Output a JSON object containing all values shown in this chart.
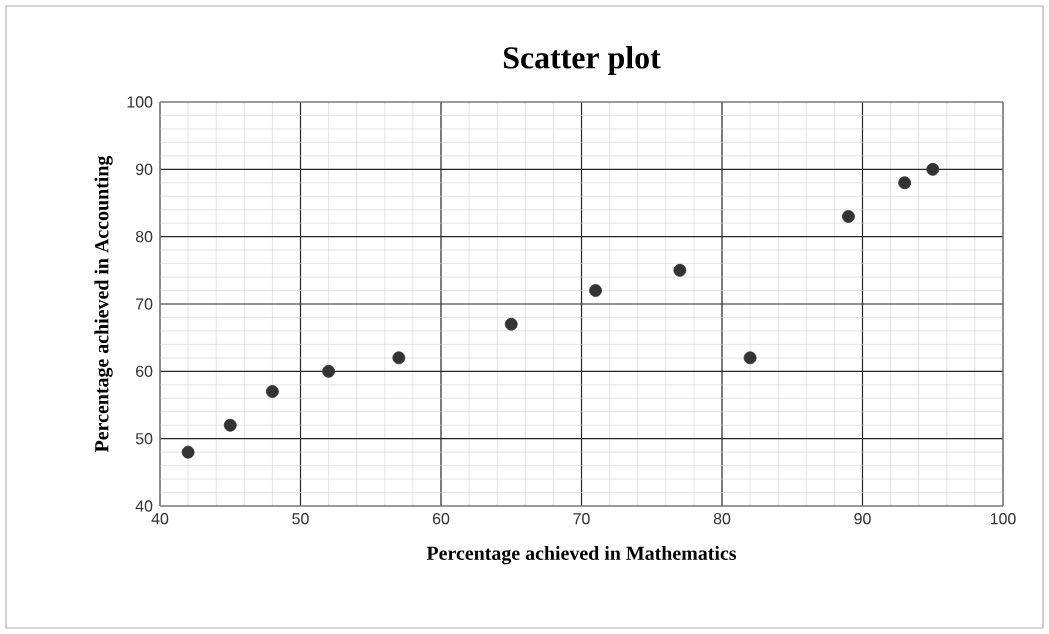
{
  "chart_data": {
    "type": "scatter",
    "title": "Scatter plot",
    "xlabel": "Percentage achieved in Mathematics",
    "ylabel": "Percentage achieved in Accounting",
    "x": [
      42,
      45,
      48,
      52,
      57,
      65,
      71,
      77,
      82,
      89,
      93,
      95
    ],
    "series": [
      {
        "color": "#333333",
        "values": [
          48,
          52,
          57,
          60,
          62,
          67,
          72,
          75,
          62,
          83,
          88,
          90
        ]
      }
    ],
    "xlim": [
      40,
      100
    ],
    "ylim": [
      40,
      100
    ],
    "xticks": [
      40,
      50,
      60,
      70,
      80,
      90,
      100
    ],
    "yticks": [
      40,
      50,
      60,
      70,
      80,
      90,
      100
    ],
    "grid": true,
    "marker": "circle"
  }
}
